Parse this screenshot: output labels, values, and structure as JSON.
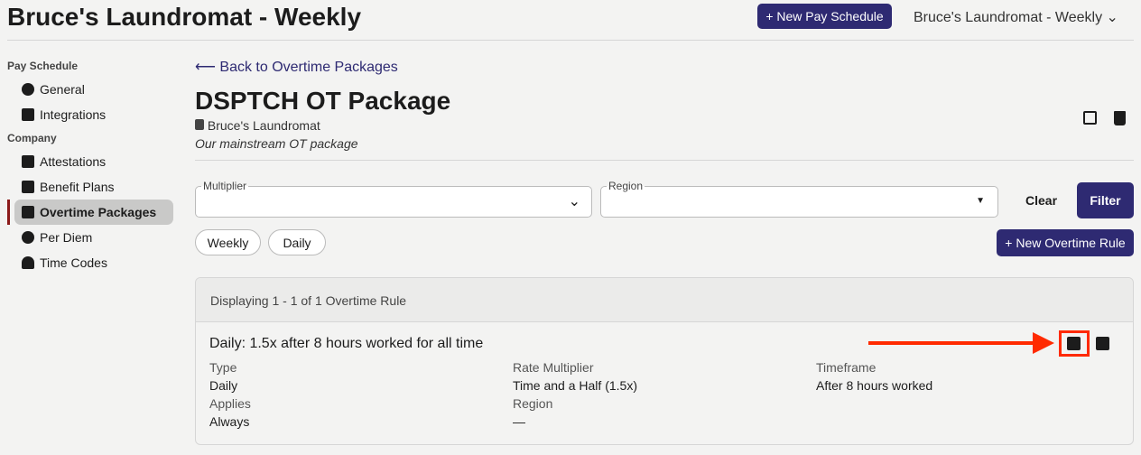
{
  "header": {
    "title": "Bruce's Laundromat - Weekly",
    "new_pay_schedule": "+ New Pay Schedule",
    "schedule_select": "Bruce's Laundromat - Weekly"
  },
  "sidebar": {
    "section1": "Pay Schedule",
    "section2": "Company",
    "items": [
      {
        "label": "General",
        "icon": "gear-icon"
      },
      {
        "label": "Integrations",
        "icon": "table-icon"
      },
      {
        "label": "Attestations",
        "icon": "clipboard-check-icon"
      },
      {
        "label": "Benefit Plans",
        "icon": "money-check-icon"
      },
      {
        "label": "Overtime Packages",
        "icon": "briefcase-clock-icon",
        "active": true
      },
      {
        "label": "Per Diem",
        "icon": "gear-icon"
      },
      {
        "label": "Time Codes",
        "icon": "bell-icon"
      }
    ]
  },
  "main": {
    "back_link": "Back to Overtime Packages",
    "title": "DSPTCH OT Package",
    "company": "Bruce's Laundromat",
    "description": "Our mainstream OT package",
    "filters": {
      "multiplier_label": "Multiplier",
      "multiplier_value": "",
      "region_label": "Region",
      "region_value": "",
      "clear": "Clear",
      "filter": "Filter"
    },
    "chips": [
      "Weekly",
      "Daily"
    ],
    "new_rule": "+ New Overtime Rule",
    "list": {
      "summary": "Displaying 1 - 1 of 1 Overtime Rule",
      "rules": [
        {
          "title": "Daily: 1.5x after 8 hours worked for all time",
          "type_label": "Type",
          "type": "Daily",
          "rate_label": "Rate Multiplier",
          "rate": "Time and a Half (1.5x)",
          "timeframe_label": "Timeframe",
          "timeframe": "After 8 hours worked",
          "applies_label": "Applies",
          "applies": "Always",
          "region_label": "Region",
          "region": "—"
        }
      ]
    }
  },
  "colors": {
    "primary": "#2e2a72",
    "active_marker": "#8b1a1a",
    "annotation": "#ff2a00"
  }
}
